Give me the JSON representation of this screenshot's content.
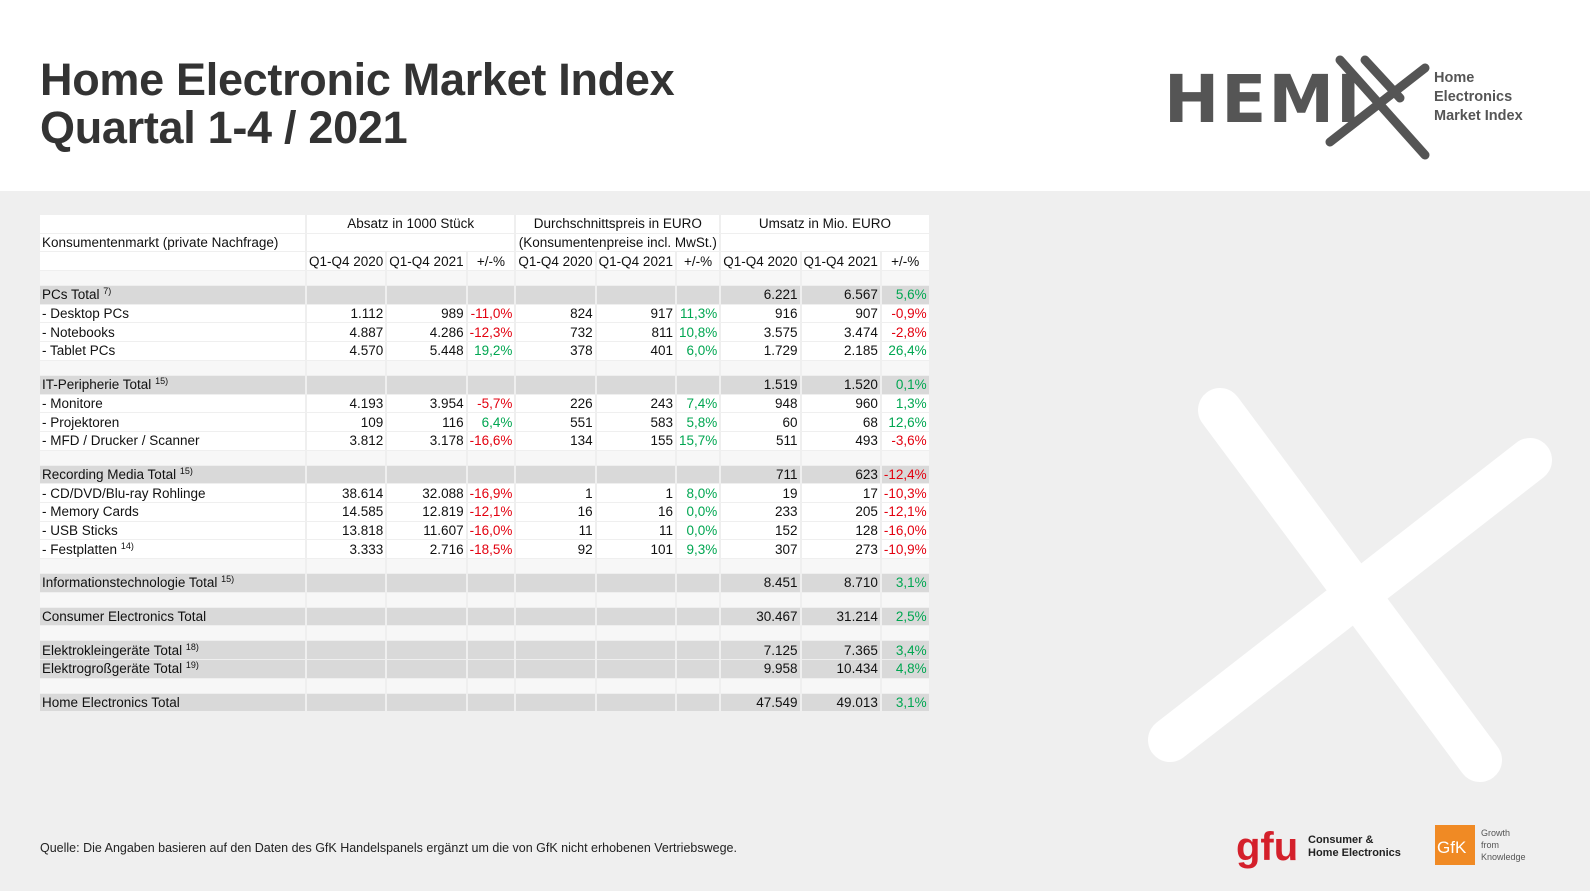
{
  "header": {
    "title_line1": "Home Electronic Market Index",
    "title_line2": "Quartal 1-4 / 2021"
  },
  "logo": {
    "word": "HEMI",
    "tagline": [
      "Home",
      "Electronics",
      "Market Index"
    ]
  },
  "table": {
    "row_label_header": "Konsumentenmarkt (private Nachfrage)",
    "groups": [
      {
        "title": "Absatz in 1000 Stück"
      },
      {
        "title": "Durchschnittspreis in EURO",
        "subtitle": "(Konsumentenpreise incl. MwSt.)"
      },
      {
        "title": "Umsatz in Mio. EURO"
      }
    ],
    "columns": [
      "Q1-Q4 2020",
      "Q1-Q4 2021",
      "+/-%",
      "Q1-Q4 2020",
      "Q1-Q4 2021",
      "+/-%",
      "Q1-Q4 2020",
      "Q1-Q4 2021",
      "+/-%"
    ],
    "sections": [
      {
        "rows": [
          {
            "label": "PCs Total",
            "note": "7)",
            "total": true,
            "cells": [
              null,
              null,
              null,
              null,
              null,
              null,
              "6.221",
              "6.567",
              "5,6%"
            ]
          },
          {
            "label": "- Desktop PCs",
            "cells": [
              "1.112",
              "989",
              "-11,0%",
              "824",
              "917",
              "11,3%",
              "916",
              "907",
              "-0,9%"
            ]
          },
          {
            "label": "- Notebooks",
            "cells": [
              "4.887",
              "4.286",
              "-12,3%",
              "732",
              "811",
              "10,8%",
              "3.575",
              "3.474",
              "-2,8%"
            ]
          },
          {
            "label": "- Tablet PCs",
            "cells": [
              "4.570",
              "5.448",
              "19,2%",
              "378",
              "401",
              "6,0%",
              "1.729",
              "2.185",
              "26,4%"
            ]
          }
        ]
      },
      {
        "rows": [
          {
            "label": "IT-Peripherie Total",
            "note": "15)",
            "total": true,
            "cells": [
              null,
              null,
              null,
              null,
              null,
              null,
              "1.519",
              "1.520",
              "0,1%"
            ]
          },
          {
            "label": "- Monitore",
            "cells": [
              "4.193",
              "3.954",
              "-5,7%",
              "226",
              "243",
              "7,4%",
              "948",
              "960",
              "1,3%"
            ]
          },
          {
            "label": "- Projektoren",
            "cells": [
              "109",
              "116",
              "6,4%",
              "551",
              "583",
              "5,8%",
              "60",
              "68",
              "12,6%"
            ]
          },
          {
            "label": "- MFD / Drucker / Scanner",
            "cells": [
              "3.812",
              "3.178",
              "-16,6%",
              "134",
              "155",
              "15,7%",
              "511",
              "493",
              "-3,6%"
            ]
          }
        ]
      },
      {
        "rows": [
          {
            "label": "Recording Media Total",
            "note": "15)",
            "total": true,
            "cells": [
              null,
              null,
              null,
              null,
              null,
              null,
              "711",
              "623",
              "-12,4%"
            ]
          },
          {
            "label": "- CD/DVD/Blu-ray Rohlinge",
            "cells": [
              "38.614",
              "32.088",
              "-16,9%",
              "1",
              "1",
              "8,0%",
              "19",
              "17",
              "-10,3%"
            ]
          },
          {
            "label": "- Memory Cards",
            "cells": [
              "14.585",
              "12.819",
              "-12,1%",
              "16",
              "16",
              "0,0%",
              "233",
              "205",
              "-12,1%"
            ]
          },
          {
            "label": "- USB Sticks",
            "cells": [
              "13.818",
              "11.607",
              "-16,0%",
              "11",
              "11",
              "0,0%",
              "152",
              "128",
              "-16,0%"
            ]
          },
          {
            "label": "- Festplatten",
            "note": "14)",
            "cells": [
              "3.333",
              "2.716",
              "-18,5%",
              "92",
              "101",
              "9,3%",
              "307",
              "273",
              "-10,9%"
            ]
          }
        ]
      },
      {
        "rows": [
          {
            "label": "Informationstechnologie Total",
            "note": "15)",
            "total": true,
            "cells": [
              null,
              null,
              null,
              null,
              null,
              null,
              "8.451",
              "8.710",
              "3,1%"
            ]
          }
        ]
      },
      {
        "rows": [
          {
            "label": "Consumer Electronics Total",
            "total": true,
            "cells": [
              null,
              null,
              null,
              null,
              null,
              null,
              "30.467",
              "31.214",
              "2,5%"
            ]
          }
        ]
      },
      {
        "rows": [
          {
            "label": "Elektrokleingeräte Total",
            "note": "18)",
            "total": true,
            "cells": [
              null,
              null,
              null,
              null,
              null,
              null,
              "7.125",
              "7.365",
              "3,4%"
            ]
          },
          {
            "label": "Elektrogroßgeräte Total",
            "note": "19)",
            "total": true,
            "cells": [
              null,
              null,
              null,
              null,
              null,
              null,
              "9.958",
              "10.434",
              "4,8%"
            ]
          }
        ]
      },
      {
        "rows": [
          {
            "label": "Home Electronics Total",
            "total": true,
            "cells": [
              null,
              null,
              null,
              null,
              null,
              null,
              "47.549",
              "49.013",
              "3,1%"
            ]
          }
        ]
      }
    ]
  },
  "footer": {
    "source": "Quelle: Die Angaben basieren auf den Daten des GfK Handelspanels ergänzt um die von GfK nicht erhobenen Vertriebswege.",
    "gfu": {
      "word": "gfu",
      "line1": "Consumer &",
      "line2": "Home Electronics"
    },
    "gfk": {
      "word": "GfK",
      "tagline": [
        "Growth",
        "from",
        "Knowledge"
      ]
    }
  }
}
